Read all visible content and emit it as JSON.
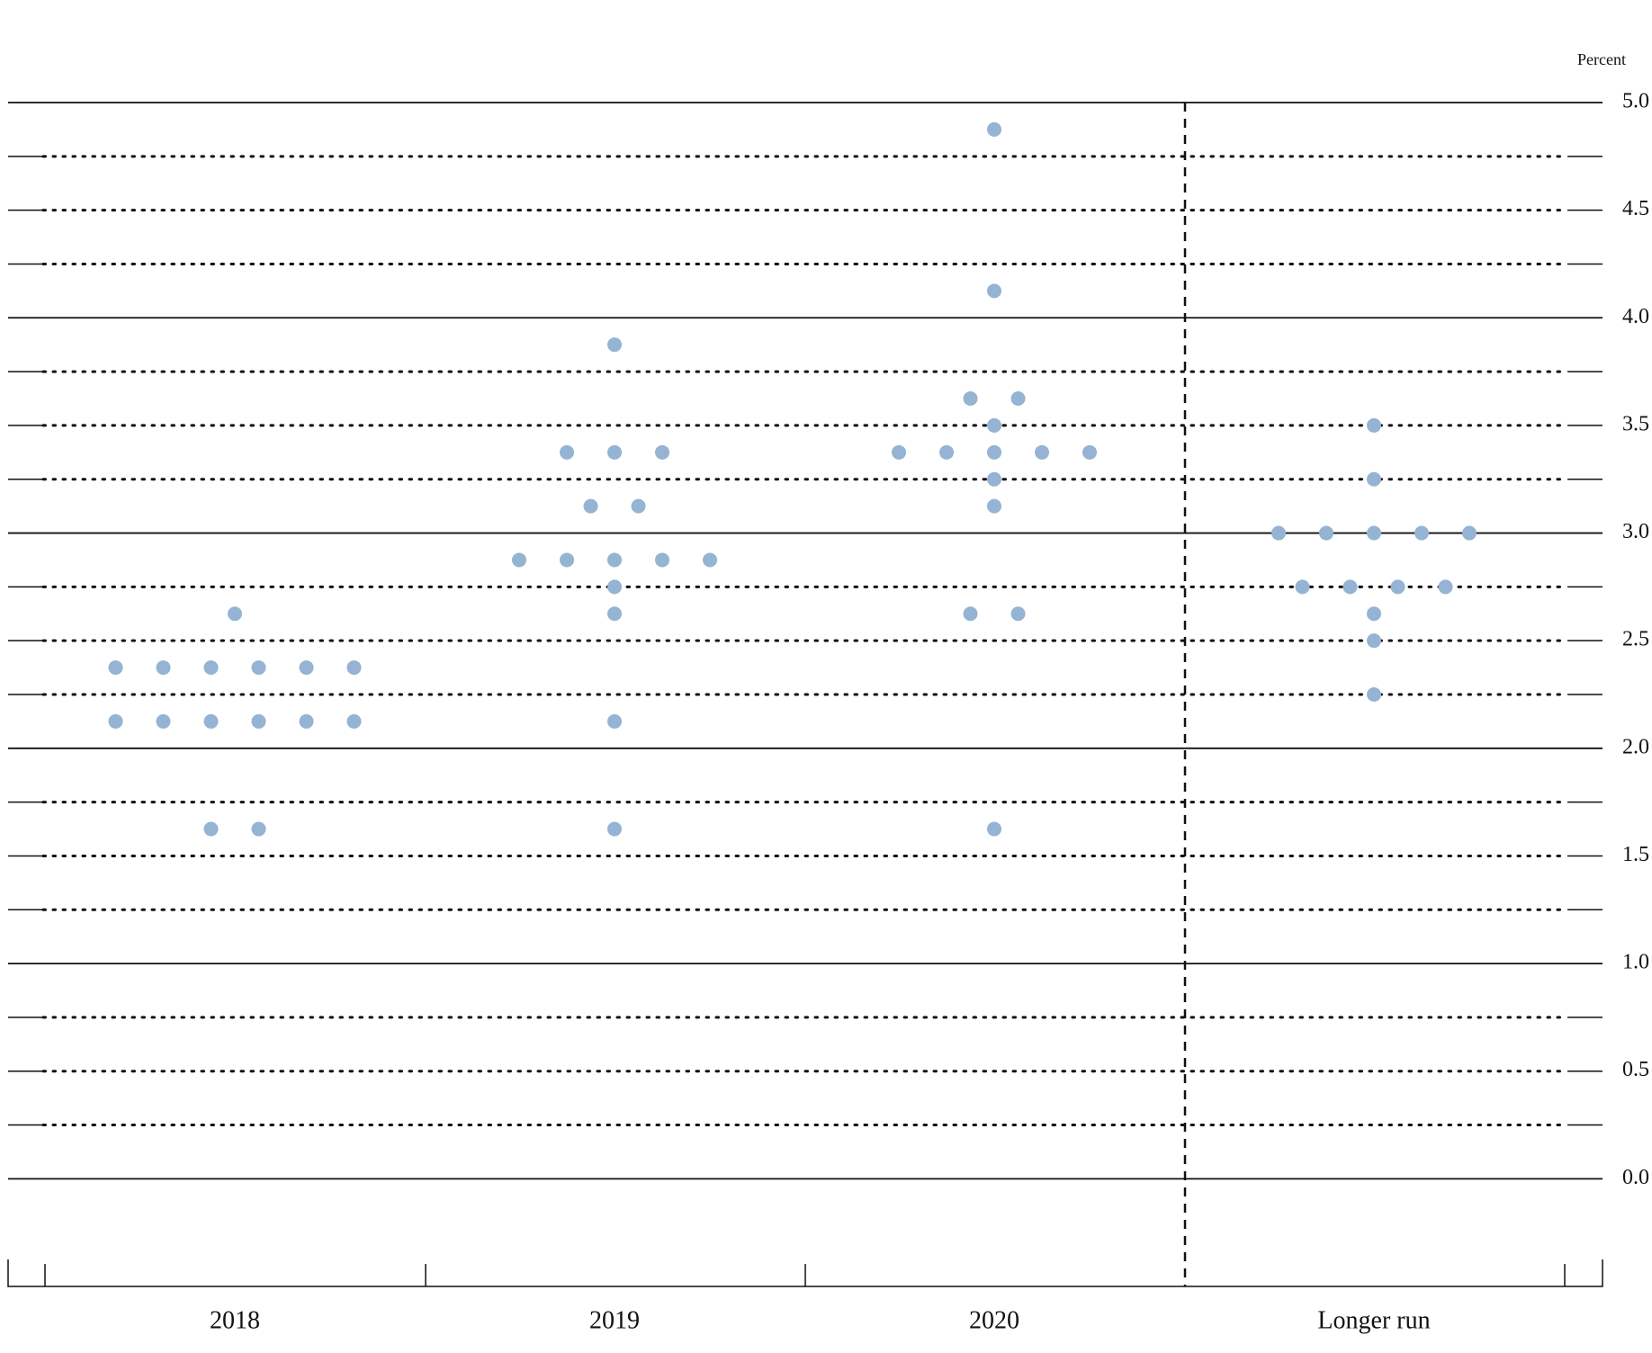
{
  "chart_data": {
    "type": "dot",
    "y_label": "Percent",
    "categories": [
      "2018",
      "2019",
      "2020",
      "Longer run"
    ],
    "values": [
      [
        2.625,
        2.375,
        2.375,
        2.375,
        2.375,
        2.375,
        2.375,
        2.125,
        2.125,
        2.125,
        2.125,
        2.125,
        2.125,
        1.625,
        1.625
      ],
      [
        3.875,
        3.375,
        3.375,
        3.375,
        3.125,
        3.125,
        2.875,
        2.875,
        2.875,
        2.875,
        2.875,
        2.75,
        2.625,
        2.125,
        1.625
      ],
      [
        4.875,
        4.125,
        3.625,
        3.625,
        3.5,
        3.375,
        3.375,
        3.375,
        3.375,
        3.375,
        3.25,
        3.125,
        2.625,
        2.625,
        1.625
      ],
      [
        3.5,
        3.25,
        3.0,
        3.0,
        3.0,
        3.0,
        3.0,
        2.75,
        2.75,
        2.75,
        2.75,
        2.625,
        2.5,
        2.25
      ]
    ],
    "color": "#95b3d3",
    "ylim": [
      -0.5,
      5.0
    ],
    "yticks": [
      {
        "value": 0,
        "label": "0.0"
      },
      0.5,
      {
        "value": 1,
        "label": "1.0"
      },
      1.5,
      {
        "value": 2,
        "label": "2.0"
      },
      2.5,
      {
        "value": 3,
        "label": "3.0"
      },
      3.5,
      {
        "value": 4,
        "label": "4.0"
      },
      4.5,
      {
        "value": 5,
        "label": "5.0"
      }
    ],
    "minor_yticks": [
      0.25,
      0.75,
      1.25,
      1.75,
      2.25,
      2.75,
      3.25,
      3.75,
      4.25,
      4.75
    ],
    "grid": true
  }
}
